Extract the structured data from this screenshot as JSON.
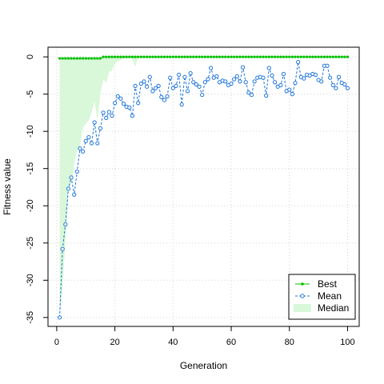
{
  "chart_data": {
    "type": "line",
    "title": "",
    "xlabel": "Generation",
    "ylabel": "Fitness value",
    "xlim": [
      -3,
      104
    ],
    "ylim": [
      -36.2,
      1.3
    ],
    "xticks": [
      0,
      20,
      40,
      60,
      80,
      100
    ],
    "yticks": [
      0,
      -5,
      -10,
      -15,
      -20,
      -25,
      -30,
      -35
    ],
    "grid": true,
    "legend_position": "bottom-right",
    "colors": {
      "best": "#00c000",
      "mean": "#1e74d6",
      "median_fill": "#d9f7d9",
      "grid": "#d3d3d3",
      "frame": "#000000"
    },
    "series": [
      {
        "name": "Best",
        "style": "solid line with filled dots",
        "x": [
          1,
          2,
          3,
          4,
          5,
          6,
          7,
          8,
          9,
          10,
          11,
          12,
          13,
          14,
          15,
          16,
          17,
          18,
          19,
          20,
          21,
          22,
          23,
          24,
          25,
          26,
          27,
          28,
          29,
          30,
          31,
          32,
          33,
          34,
          35,
          36,
          37,
          38,
          39,
          40,
          41,
          42,
          43,
          44,
          45,
          46,
          47,
          48,
          49,
          50,
          51,
          52,
          53,
          54,
          55,
          56,
          57,
          58,
          59,
          60,
          61,
          62,
          63,
          64,
          65,
          66,
          67,
          68,
          69,
          70,
          71,
          72,
          73,
          74,
          75,
          76,
          77,
          78,
          79,
          80,
          81,
          82,
          83,
          84,
          85,
          86,
          87,
          88,
          89,
          90,
          91,
          92,
          93,
          94,
          95,
          96,
          97,
          98,
          99,
          100
        ],
        "values": [
          -0.2,
          -0.2,
          -0.2,
          -0.2,
          -0.2,
          -0.2,
          -0.2,
          -0.2,
          -0.2,
          -0.2,
          -0.2,
          -0.2,
          -0.2,
          -0.2,
          -0.2,
          0,
          0,
          0,
          0,
          0,
          0,
          0,
          0,
          0,
          0,
          0,
          0,
          0,
          0,
          0,
          0,
          0,
          0,
          0,
          0,
          0,
          0,
          0,
          0,
          0,
          0,
          0,
          0,
          0,
          0,
          0,
          0,
          0,
          0,
          0,
          0,
          0,
          0,
          0,
          0,
          0,
          0,
          0,
          0,
          0,
          0,
          0,
          0,
          0,
          0,
          0,
          0,
          0,
          0,
          0,
          0,
          0,
          0,
          0,
          0,
          0,
          0,
          0,
          0,
          0,
          0,
          0,
          0,
          0,
          0,
          0,
          0,
          0,
          0,
          0,
          0,
          0,
          0,
          0,
          0,
          0,
          0,
          0,
          0,
          0
        ]
      },
      {
        "name": "Mean",
        "style": "dashed line with open circles",
        "x": [
          1,
          2,
          3,
          4,
          5,
          6,
          7,
          8,
          9,
          10,
          11,
          12,
          13,
          14,
          15,
          16,
          17,
          18,
          19,
          20,
          21,
          22,
          23,
          24,
          25,
          26,
          27,
          28,
          29,
          30,
          31,
          32,
          33,
          34,
          35,
          36,
          37,
          38,
          39,
          40,
          41,
          42,
          43,
          44,
          45,
          46,
          47,
          48,
          49,
          50,
          51,
          52,
          53,
          54,
          55,
          56,
          57,
          58,
          59,
          60,
          61,
          62,
          63,
          64,
          65,
          66,
          67,
          68,
          69,
          70,
          71,
          72,
          73,
          74,
          75,
          76,
          77,
          78,
          79,
          80,
          81,
          82,
          83,
          84,
          85,
          86,
          87,
          88,
          89,
          90,
          91,
          92,
          93,
          94,
          95,
          96,
          97,
          98,
          99,
          100
        ],
        "values": [
          -35.0,
          -25.8,
          -22.5,
          -17.7,
          -16.2,
          -18.5,
          -15.4,
          -12.3,
          -12.7,
          -11.3,
          -10.8,
          -11.6,
          -8.8,
          -11.6,
          -9.6,
          -7.5,
          -8.2,
          -7.4,
          -7.9,
          -6.2,
          -5.3,
          -5.6,
          -6.3,
          -6.7,
          -6.8,
          -7.9,
          -3.9,
          -6.2,
          -3.6,
          -3.3,
          -4.0,
          -2.7,
          -4.6,
          -4.2,
          -3.9,
          -5.4,
          -5.8,
          -5.3,
          -2.8,
          -4.2,
          -3.9,
          -2.4,
          -6.4,
          -2.7,
          -4.6,
          -2.2,
          -3.4,
          -3.7,
          -4.0,
          -5.1,
          -3.4,
          -3.0,
          -1.5,
          -2.8,
          -2.6,
          -3.4,
          -3.2,
          -3.3,
          -3.8,
          -3.6,
          -3.0,
          -2.6,
          -3.3,
          -1.4,
          -3.4,
          -4.8,
          -5.1,
          -3.3,
          -2.8,
          -2.7,
          -2.8,
          -5.2,
          -1.5,
          -2.5,
          -3.4,
          -4.0,
          -3.8,
          -2.3,
          -4.6,
          -4.4,
          -5.0,
          -3.5,
          -0.7,
          -2.7,
          -2.9,
          -2.4,
          -2.5,
          -2.3,
          -2.4,
          -3.1,
          -3.3,
          -1.2,
          -1.2,
          -2.8,
          -3.8,
          -4.2,
          -2.7,
          -3.5,
          -3.7,
          -4.2
        ]
      },
      {
        "name": "Median",
        "style": "filled area between median and best",
        "x": [
          1,
          2,
          3,
          4,
          5,
          6,
          7,
          8,
          9,
          10,
          11,
          12,
          13,
          14,
          15,
          16,
          17,
          18,
          19,
          20,
          21,
          22,
          23,
          24,
          25,
          26,
          27,
          28,
          29,
          30
        ],
        "values": [
          -35.0,
          -31.0,
          -25.0,
          -18.0,
          -17.0,
          -14.5,
          -12.5,
          -12.0,
          -9.5,
          -9.0,
          -8.5,
          -7.5,
          -6.0,
          -8.5,
          -5.0,
          -3.0,
          -3.5,
          -2.0,
          -1.8,
          -0.9,
          -0.6,
          -0.4,
          -0.2,
          -0.2,
          -0.1,
          -0.3,
          -1.3,
          0,
          0,
          0
        ]
      }
    ]
  }
}
